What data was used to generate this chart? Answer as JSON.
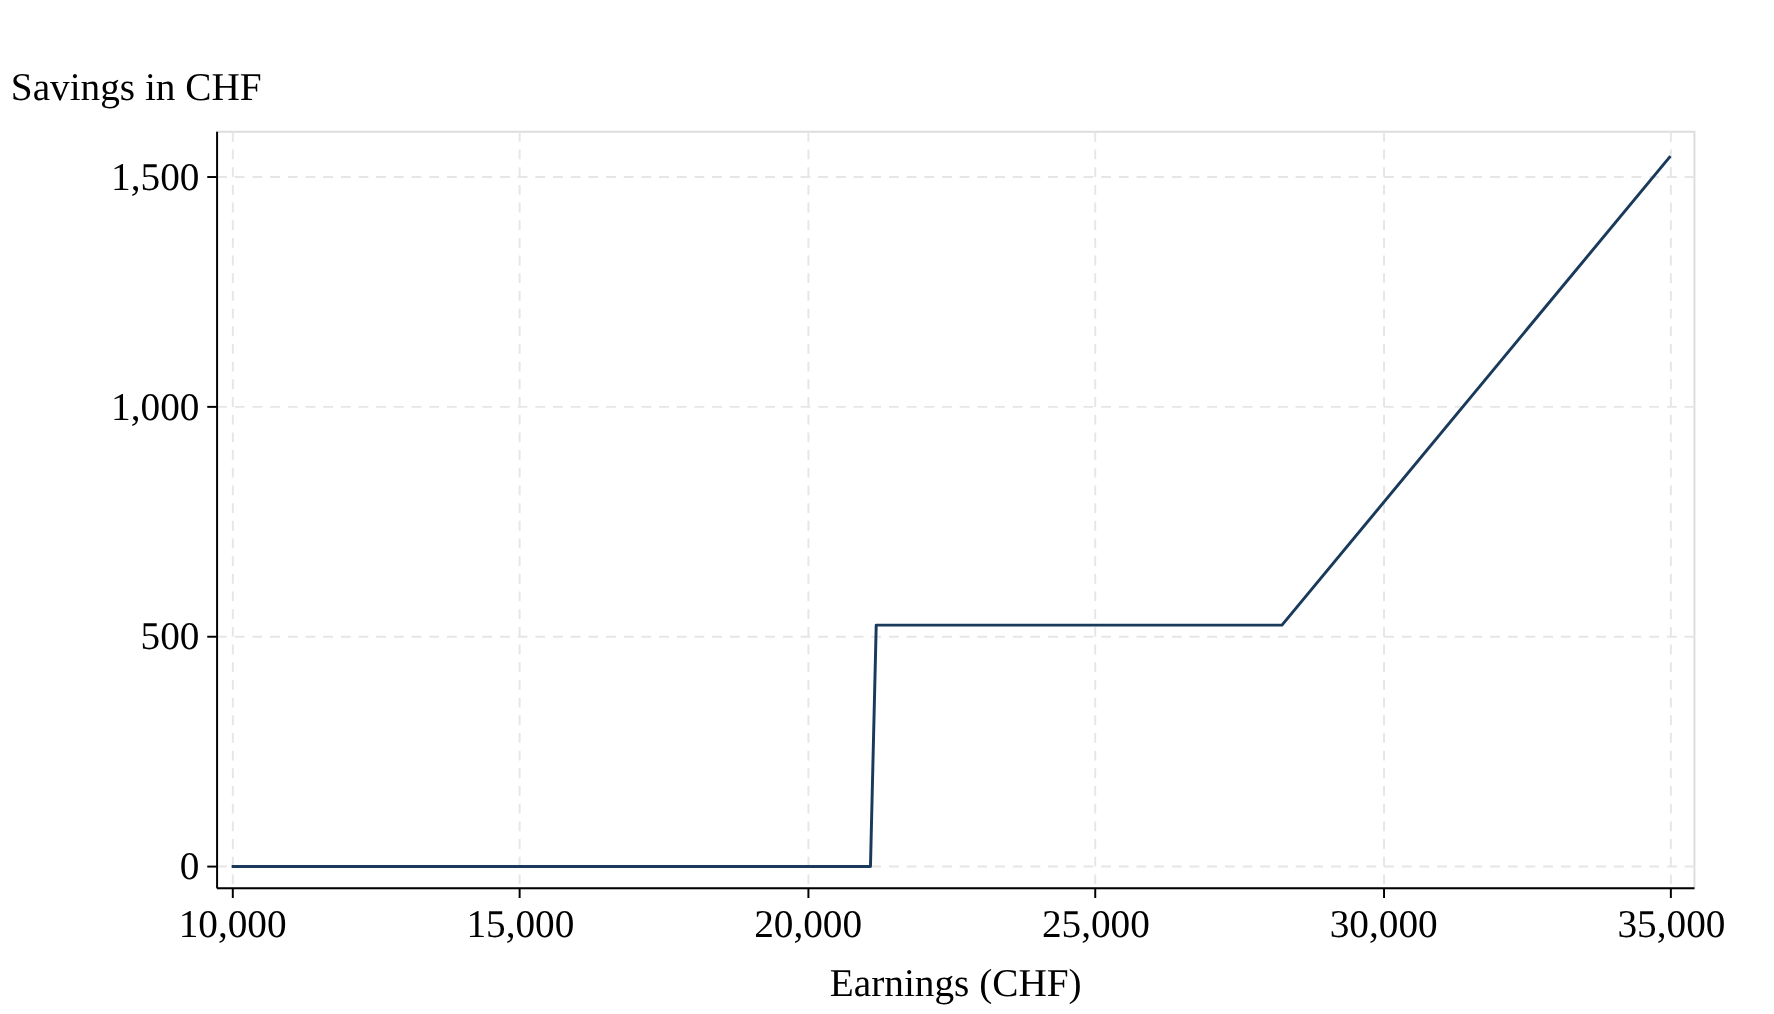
{
  "chart_data": {
    "type": "line",
    "xlabel": "Earnings (CHF)",
    "ylabel": "Savings in CHF",
    "x": [
      10000,
      21100,
      21200,
      28250,
      35000
    ],
    "series": [
      {
        "color": "#1a3a5c",
        "values": [
          0,
          0,
          525,
          525,
          1545
        ]
      }
    ],
    "xlim": [
      9730,
      35400
    ],
    "ylim": [
      -45,
      1600
    ],
    "xticks": [
      {
        "value": 10000,
        "label": "10,000"
      },
      {
        "value": 15000,
        "label": "15,000"
      },
      {
        "value": 20000,
        "label": "20,000"
      },
      {
        "value": 25000,
        "label": "25,000"
      },
      {
        "value": 30000,
        "label": "30,000"
      },
      {
        "value": 35000,
        "label": "35,000"
      }
    ],
    "yticks": [
      0,
      500,
      {
        "value": 1000,
        "label": "1,000"
      },
      {
        "value": 1500,
        "label": "1,500"
      }
    ],
    "grid": true,
    "line_style": "solid",
    "marker": "none"
  }
}
